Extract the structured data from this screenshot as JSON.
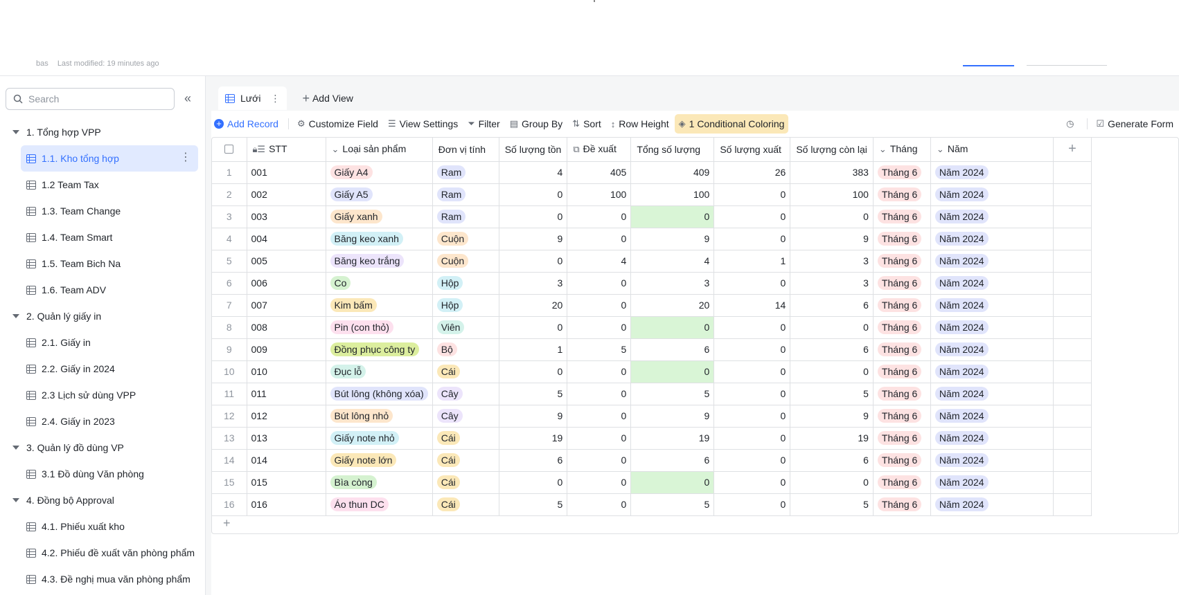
{
  "header": {
    "breadcrumb_base": "bas",
    "last_modified": "Last modified: 19 minutes ago"
  },
  "sidebar": {
    "search_placeholder": "Search",
    "groups": [
      {
        "label": "1. Tổng hợp VPP",
        "items": [
          "1.1. Kho tổng hợp",
          "1.2 Team Tax",
          "1.3. Team Change",
          "1.4. Team Smart",
          "1.5. Team Bich Na",
          "1.6. Team ADV"
        ]
      },
      {
        "label": "2. Quản lý giấy in",
        "items": [
          "2.1. Giấy in",
          "2.2. Giấy in 2024",
          "2.3 Lịch sử dùng VPP",
          "2.4. Giấy in 2023"
        ]
      },
      {
        "label": "3. Quản lý đồ dùng VP",
        "items": [
          "3.1 Đồ dùng Văn phòng"
        ]
      },
      {
        "label": "4. Đồng bộ Approval",
        "items": [
          "4.1. Phiếu xuất kho",
          "4.2. Phiếu đề xuất văn phòng phẩm",
          "4.3. Đề nghị mua văn phòng phẩm"
        ]
      }
    ],
    "active_item": "1.1. Kho tổng hợp"
  },
  "view": {
    "tab_label": "Lưới",
    "add_view": "Add View"
  },
  "toolbar": {
    "add_record": "Add Record",
    "customize_field": "Customize Field",
    "view_settings": "View Settings",
    "filter": "Filter",
    "group_by": "Group By",
    "sort": "Sort",
    "row_height": "Row Height",
    "conditional_coloring": "1 Conditional Coloring",
    "generate_form": "Generate Form"
  },
  "columns": [
    "STT",
    "Loại sản phẩm",
    "Đơn vị tính",
    "Số lượng tồn",
    "Đề xuất",
    "Tổng số lượng",
    "Số lượng xuất",
    "Số lượng còn lại",
    "Tháng",
    "Năm"
  ],
  "rows": [
    {
      "n": "1",
      "stt": "001",
      "product": "Giấy A4",
      "pc": "#fde2e2",
      "unit": "Ram",
      "uc": "#e0e4fb",
      "ton": "4",
      "dx": "405",
      "tong": "409",
      "xuat": "26",
      "conlai": "383",
      "thang": "Tháng 6",
      "nam": "Năm 2024"
    },
    {
      "n": "2",
      "stt": "002",
      "product": "Giấy A5",
      "pc": "#e0e4fb",
      "unit": "Ram",
      "uc": "#e0e4fb",
      "ton": "0",
      "dx": "100",
      "tong": "100",
      "xuat": "0",
      "conlai": "100",
      "thang": "Tháng 6",
      "nam": "Năm 2024"
    },
    {
      "n": "3",
      "stt": "003",
      "product": "Giấy xanh",
      "pc": "#fde6cc",
      "unit": "Ram",
      "uc": "#e0e4fb",
      "ton": "0",
      "dx": "0",
      "tong": "0",
      "xuat": "0",
      "conlai": "0",
      "thang": "Tháng 6",
      "nam": "Năm 2024"
    },
    {
      "n": "4",
      "stt": "004",
      "product": "Băng keo xanh",
      "pc": "#d2f0f6",
      "unit": "Cuộn",
      "uc": "#fde6cc",
      "ton": "9",
      "dx": "0",
      "tong": "9",
      "xuat": "0",
      "conlai": "9",
      "thang": "Tháng 6",
      "nam": "Năm 2024"
    },
    {
      "n": "5",
      "stt": "005",
      "product": "Băng keo trắng",
      "pc": "#ece4fb",
      "unit": "Cuộn",
      "uc": "#fde6cc",
      "ton": "0",
      "dx": "4",
      "tong": "4",
      "xuat": "1",
      "conlai": "3",
      "thang": "Tháng 6",
      "nam": "Năm 2024"
    },
    {
      "n": "6",
      "stt": "006",
      "product": "Co",
      "pc": "#d5f2d0",
      "unit": "Hộp",
      "uc": "#d2f0f6",
      "ton": "3",
      "dx": "0",
      "tong": "3",
      "xuat": "0",
      "conlai": "3",
      "thang": "Tháng 6",
      "nam": "Năm 2024"
    },
    {
      "n": "7",
      "stt": "007",
      "product": "Kim bấm",
      "pc": "#fbe8b8",
      "unit": "Hộp",
      "uc": "#d2f0f6",
      "ton": "20",
      "dx": "0",
      "tong": "20",
      "xuat": "14",
      "conlai": "6",
      "thang": "Tháng 6",
      "nam": "Năm 2024"
    },
    {
      "n": "8",
      "stt": "008",
      "product": "Pin (con thỏ)",
      "pc": "#fde0ee",
      "unit": "Viên",
      "uc": "#d4f2ea",
      "ton": "0",
      "dx": "0",
      "tong": "0",
      "xuat": "0",
      "conlai": "0",
      "thang": "Tháng 6",
      "nam": "Năm 2024"
    },
    {
      "n": "9",
      "stt": "009",
      "product": "Đồng phục công ty",
      "pc": "#dcee9e",
      "unit": "Bộ",
      "uc": "#fde2e2",
      "ton": "1",
      "dx": "5",
      "tong": "6",
      "xuat": "0",
      "conlai": "6",
      "thang": "Tháng 6",
      "nam": "Năm 2024"
    },
    {
      "n": "10",
      "stt": "010",
      "product": "Đục lỗ",
      "pc": "#d4f2ea",
      "unit": "Cái",
      "uc": "#fbe8b8",
      "ton": "0",
      "dx": "0",
      "tong": "0",
      "xuat": "0",
      "conlai": "0",
      "thang": "Tháng 6",
      "nam": "Năm 2024"
    },
    {
      "n": "11",
      "stt": "011",
      "product": "Bút lông (không xóa)",
      "pc": "#e0e4fb",
      "unit": "Cây",
      "uc": "#ece4fb",
      "ton": "5",
      "dx": "0",
      "tong": "5",
      "xuat": "0",
      "conlai": "5",
      "thang": "Tháng 6",
      "nam": "Năm 2024"
    },
    {
      "n": "12",
      "stt": "012",
      "product": "Bút lông nhỏ",
      "pc": "#fde6cc",
      "unit": "Cây",
      "uc": "#ece4fb",
      "ton": "9",
      "dx": "0",
      "tong": "9",
      "xuat": "0",
      "conlai": "9",
      "thang": "Tháng 6",
      "nam": "Năm 2024"
    },
    {
      "n": "13",
      "stt": "013",
      "product": "Giấy note nhỏ",
      "pc": "#d2f0f6",
      "unit": "Cái",
      "uc": "#fbe8b8",
      "ton": "19",
      "dx": "0",
      "tong": "19",
      "xuat": "0",
      "conlai": "19",
      "thang": "Tháng 6",
      "nam": "Năm 2024"
    },
    {
      "n": "14",
      "stt": "014",
      "product": "Giấy note lớn",
      "pc": "#fbe8b8",
      "unit": "Cái",
      "uc": "#fbe8b8",
      "ton": "6",
      "dx": "0",
      "tong": "6",
      "xuat": "0",
      "conlai": "6",
      "thang": "Tháng 6",
      "nam": "Năm 2024"
    },
    {
      "n": "15",
      "stt": "015",
      "product": "Bìa còng",
      "pc": "#d5f2d0",
      "unit": "Cái",
      "uc": "#fbe8b8",
      "ton": "0",
      "dx": "0",
      "tong": "0",
      "xuat": "0",
      "conlai": "0",
      "thang": "Tháng 6",
      "nam": "Năm 2024"
    },
    {
      "n": "16",
      "stt": "016",
      "product": "Áo thun DC",
      "pc": "#fde0ee",
      "unit": "Cái",
      "uc": "#fbe8b8",
      "ton": "5",
      "dx": "0",
      "tong": "5",
      "xuat": "0",
      "conlai": "5",
      "thang": "Tháng 6",
      "nam": "Năm 2024"
    }
  ],
  "colors": {
    "accent": "#3370ff",
    "active_bg": "#e1eaff",
    "conditional_highlight": "#d9f5d6",
    "thang_tag": "#fde2e2",
    "nam_tag": "#e0e4fb"
  }
}
